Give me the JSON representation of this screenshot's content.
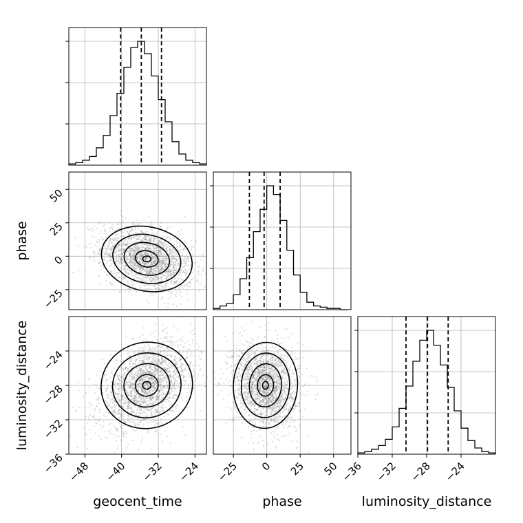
{
  "chart_data": {
    "type": "corner",
    "parameters": [
      "geocent_time",
      "phase",
      "luminosity_distance"
    ],
    "axis_labels": {
      "geocent_time": "geocent_time",
      "phase": "phase",
      "luminosity_distance": "luminosity_distance"
    },
    "ranges": {
      "geocent_time": [
        -51.5,
        -21.5
      ],
      "phase": [
        -40,
        63
      ],
      "luminosity_distance": [
        -36,
        -20
      ]
    },
    "ticks": {
      "geocent_time": [
        -48,
        -40,
        -32,
        -24
      ],
      "phase": [
        -25,
        0,
        25,
        50
      ],
      "luminosity_distance": [
        -36,
        -32,
        -28,
        -24
      ]
    },
    "tick_labels": {
      "geocent_time": [
        "−48",
        "−40",
        "−32",
        "−24"
      ],
      "phase": [
        "−25",
        "0",
        "25",
        "50"
      ],
      "luminosity_distance": [
        "−36",
        "−32",
        "−28",
        "−24"
      ]
    },
    "phase_y_ticks": [
      -25,
      0,
      25,
      50
    ],
    "phase_y_tick_labels": [
      "−25",
      "0",
      "25",
      "50"
    ],
    "lumdist_y_ticks": [
      -36,
      -32,
      -28,
      -24
    ],
    "lumdist_y_tick_labels": [
      "−36",
      "−32",
      "−28",
      "−24"
    ],
    "histograms": {
      "geocent_time": {
        "bin_edges": [
          -51.5,
          -50.0,
          -48.5,
          -47.0,
          -45.5,
          -44.0,
          -42.5,
          -41.0,
          -39.5,
          -38.0,
          -36.5,
          -35.0,
          -33.5,
          -32.0,
          -30.5,
          -29.0,
          -27.5,
          -26.0,
          -24.5,
          -23.0,
          -21.5
        ],
        "counts": [
          1,
          2,
          4,
          7,
          14,
          24,
          40,
          58,
          79,
          95,
          100,
          90,
          72,
          53,
          35,
          19,
          9,
          4,
          2,
          1
        ],
        "quantiles": [
          -40.2,
          -35.7,
          -31.3
        ]
      },
      "phase": {
        "bin_edges": [
          -40,
          -35,
          -30,
          -25,
          -20,
          -15,
          -10,
          -5,
          0,
          5,
          10,
          15,
          20,
          25,
          30,
          35,
          40,
          45,
          50,
          55,
          60
        ],
        "counts": [
          1,
          3,
          5,
          12,
          25,
          42,
          63,
          81,
          100,
          93,
          72,
          48,
          28,
          14,
          6,
          3,
          2,
          1,
          1,
          0
        ],
        "quantiles": [
          -13,
          -2,
          10
        ]
      },
      "luminosity_distance": {
        "bin_edges": [
          -36.0,
          -35.2,
          -34.4,
          -33.6,
          -32.8,
          -32.0,
          -31.2,
          -30.4,
          -29.6,
          -28.8,
          -28.0,
          -27.2,
          -26.4,
          -25.6,
          -24.8,
          -24.0,
          -23.2,
          -22.4,
          -21.6,
          -20.8,
          -20.0
        ],
        "counts": [
          1,
          2,
          4,
          7,
          12,
          22,
          37,
          55,
          75,
          92,
          100,
          88,
          72,
          54,
          35,
          21,
          11,
          5,
          2,
          1
        ],
        "quantiles": [
          -30.4,
          -27.9,
          -25.5
        ]
      }
    },
    "scatter": [
      {
        "x": "geocent_time",
        "y": "phase",
        "center": [
          -34.5,
          -2
        ],
        "sigma": [
          5,
          12
        ],
        "rho": -0.35
      },
      {
        "x": "geocent_time",
        "y": "luminosity_distance",
        "center": [
          -34.5,
          -28
        ],
        "sigma": [
          5,
          2.5
        ],
        "rho": 0.45
      },
      {
        "x": "phase",
        "y": "luminosity_distance",
        "center": [
          -1,
          -28
        ],
        "sigma": [
          12,
          2.5
        ],
        "rho": -0.1
      }
    ]
  }
}
